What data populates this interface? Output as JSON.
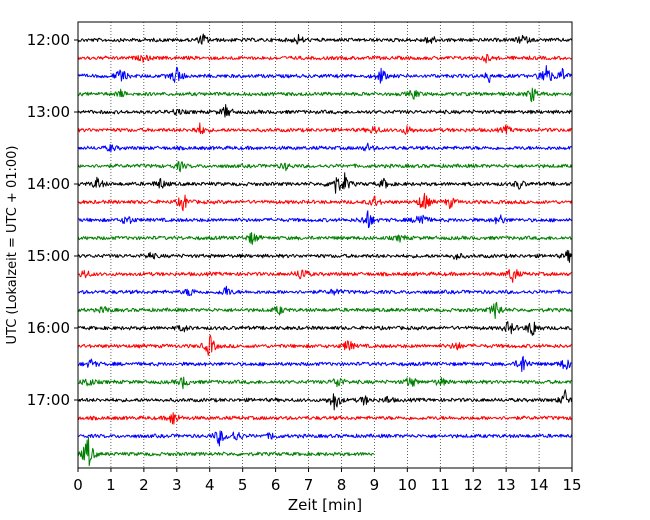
{
  "chart_data": {
    "type": "line",
    "title": "",
    "xlabel": "Zeit  [min]",
    "ylabel": "UTC (Lokalzeit = UTC + 01:00)",
    "xlim": [
      0,
      15
    ],
    "x_ticks": [
      "0",
      "1",
      "2",
      "3",
      "4",
      "5",
      "6",
      "7",
      "8",
      "9",
      "10",
      "11",
      "12",
      "13",
      "14",
      "15"
    ],
    "y_ticks": [
      "12:00",
      "13:00",
      "14:00",
      "15:00",
      "16:00",
      "17:00"
    ],
    "grid": "vertical dotted lines at every minute",
    "trace_colors": [
      "#000000",
      "#ff0000",
      "#0000ff",
      "#008000"
    ],
    "traces": [
      {
        "start": "12:00",
        "color": "#000000",
        "x_end": 15,
        "events": [
          [
            3.8,
            0.5
          ],
          [
            6.7,
            0.4
          ],
          [
            10.7,
            0.5
          ],
          [
            13.5,
            0.5
          ]
        ]
      },
      {
        "start": "12:15",
        "color": "#ff0000",
        "x_end": 15,
        "events": [
          [
            2.0,
            0.3
          ],
          [
            12.4,
            0.3
          ]
        ]
      },
      {
        "start": "12:30",
        "color": "#0000ff",
        "x_end": 15,
        "events": [
          [
            1.3,
            0.7
          ],
          [
            3.0,
            0.9
          ],
          [
            9.2,
            0.7
          ],
          [
            12.5,
            0.5
          ],
          [
            14.2,
            1.3
          ],
          [
            14.7,
            0.6
          ]
        ]
      },
      {
        "start": "12:45",
        "color": "#008000",
        "x_end": 15,
        "events": [
          [
            1.3,
            0.3
          ],
          [
            10.2,
            0.4
          ],
          [
            13.8,
            0.7
          ]
        ]
      },
      {
        "start": "13:00",
        "color": "#000000",
        "x_end": 15,
        "events": [
          [
            4.5,
            0.6
          ],
          [
            3.0,
            0.3
          ]
        ]
      },
      {
        "start": "13:15",
        "color": "#ff0000",
        "x_end": 15,
        "events": [
          [
            3.7,
            0.5
          ],
          [
            9.0,
            0.4
          ],
          [
            10.0,
            0.4
          ],
          [
            13.0,
            0.3
          ]
        ]
      },
      {
        "start": "13:30",
        "color": "#0000ff",
        "x_end": 15,
        "events": [
          [
            1.0,
            0.3
          ],
          [
            8.8,
            0.3
          ]
        ]
      },
      {
        "start": "13:45",
        "color": "#008000",
        "x_end": 15,
        "events": [
          [
            3.1,
            0.4
          ],
          [
            6.3,
            0.3
          ]
        ]
      },
      {
        "start": "14:00",
        "color": "#000000",
        "x_end": 15,
        "events": [
          [
            0.6,
            0.6
          ],
          [
            2.5,
            0.5
          ],
          [
            7.8,
            0.9
          ],
          [
            8.1,
            0.8
          ],
          [
            9.3,
            0.4
          ],
          [
            13.4,
            0.4
          ]
        ]
      },
      {
        "start": "14:15",
        "color": "#ff0000",
        "x_end": 15,
        "events": [
          [
            3.2,
            0.8
          ],
          [
            9.0,
            0.5
          ],
          [
            10.5,
            1.0
          ],
          [
            11.3,
            0.5
          ]
        ]
      },
      {
        "start": "14:30",
        "color": "#0000ff",
        "x_end": 15,
        "events": [
          [
            1.5,
            0.5
          ],
          [
            8.8,
            0.9
          ],
          [
            10.4,
            0.9
          ],
          [
            12.8,
            0.5
          ]
        ]
      },
      {
        "start": "14:45",
        "color": "#008000",
        "x_end": 15,
        "events": [
          [
            5.3,
            0.6
          ],
          [
            9.8,
            0.3
          ]
        ]
      },
      {
        "start": "15:00",
        "color": "#000000",
        "x_end": 15,
        "events": [
          [
            2.2,
            0.3
          ],
          [
            11.5,
            0.3
          ],
          [
            14.9,
            0.5
          ]
        ]
      },
      {
        "start": "15:15",
        "color": "#ff0000",
        "x_end": 15,
        "events": [
          [
            0.2,
            0.4
          ],
          [
            6.8,
            0.7
          ],
          [
            13.2,
            0.8
          ]
        ]
      },
      {
        "start": "15:30",
        "color": "#0000ff",
        "x_end": 15,
        "events": [
          [
            3.4,
            0.4
          ],
          [
            4.5,
            0.5
          ],
          [
            7.8,
            0.3
          ]
        ]
      },
      {
        "start": "15:45",
        "color": "#008000",
        "x_end": 15,
        "events": [
          [
            0.8,
            0.3
          ],
          [
            6.1,
            0.4
          ],
          [
            12.7,
            0.9
          ]
        ]
      },
      {
        "start": "16:00",
        "color": "#000000",
        "x_end": 15,
        "events": [
          [
            3.2,
            0.3
          ],
          [
            13.1,
            0.7
          ],
          [
            13.8,
            0.9
          ]
        ]
      },
      {
        "start": "16:15",
        "color": "#ff0000",
        "x_end": 15,
        "events": [
          [
            4.0,
            1.0
          ],
          [
            8.2,
            0.6
          ],
          [
            11.5,
            0.4
          ]
        ]
      },
      {
        "start": "16:30",
        "color": "#0000ff",
        "x_end": 15,
        "events": [
          [
            0.4,
            0.4
          ],
          [
            13.5,
            0.9
          ],
          [
            14.8,
            0.6
          ]
        ]
      },
      {
        "start": "16:45",
        "color": "#008000",
        "x_end": 15,
        "events": [
          [
            0.3,
            0.5
          ],
          [
            3.2,
            0.5
          ],
          [
            7.9,
            0.6
          ],
          [
            10.1,
            0.6
          ],
          [
            11.0,
            0.4
          ]
        ]
      },
      {
        "start": "17:00",
        "color": "#000000",
        "x_end": 15,
        "events": [
          [
            7.8,
            1.0
          ],
          [
            8.7,
            0.4
          ],
          [
            9.4,
            0.3
          ],
          [
            14.8,
            0.8
          ]
        ]
      },
      {
        "start": "17:15",
        "color": "#ff0000",
        "x_end": 15,
        "events": [
          [
            2.9,
            0.7
          ]
        ]
      },
      {
        "start": "17:30",
        "color": "#0000ff",
        "x_end": 15,
        "events": [
          [
            4.3,
            0.8
          ],
          [
            4.8,
            0.6
          ],
          [
            5.9,
            0.3
          ]
        ]
      },
      {
        "start": "17:45",
        "color": "#008000",
        "x_end": 9,
        "events": [
          [
            0.3,
            1.6
          ]
        ]
      }
    ]
  }
}
